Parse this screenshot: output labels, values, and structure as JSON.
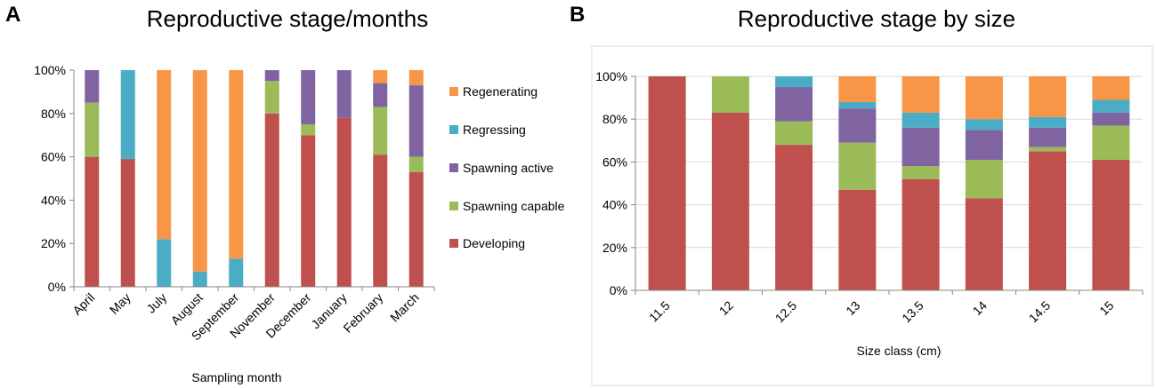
{
  "panels": {
    "a": "A",
    "b": "B"
  },
  "chart_data": [
    {
      "type": "bar",
      "stacked": true,
      "title": "Reproductive stage/months",
      "xlabel": "Sampling month",
      "ylabel": "",
      "ylim": [
        0,
        100
      ],
      "yticks": [
        "0%",
        "20%",
        "40%",
        "60%",
        "80%",
        "100%"
      ],
      "categories": [
        "April",
        "May",
        "July",
        "August",
        "September",
        "November",
        "December",
        "January",
        "February",
        "March"
      ],
      "legend_position": "right",
      "series": [
        {
          "name": "Developing",
          "color": "#c0504d",
          "values": [
            60,
            59,
            0,
            0,
            0,
            80,
            70,
            78,
            61,
            53
          ]
        },
        {
          "name": "Spawning capable",
          "color": "#9bbb59",
          "values": [
            25,
            0,
            0,
            0,
            0,
            15,
            5,
            0,
            22,
            7
          ]
        },
        {
          "name": "Spawning active",
          "color": "#8064a2",
          "values": [
            15,
            0,
            0,
            0,
            0,
            5,
            25,
            22,
            11,
            33
          ]
        },
        {
          "name": "Regressing",
          "color": "#4bacc6",
          "values": [
            0,
            41,
            22,
            7,
            13,
            0,
            0,
            0,
            0,
            0
          ]
        },
        {
          "name": "Regenerating",
          "color": "#f79646",
          "values": [
            0,
            0,
            78,
            93,
            87,
            0,
            0,
            0,
            6,
            7
          ]
        }
      ],
      "legend_order": [
        "Regenerating",
        "Regressing",
        "Spawning active",
        "Spawning capable",
        "Developing"
      ]
    },
    {
      "type": "bar",
      "stacked": true,
      "title": "Reproductive stage by size",
      "xlabel": "Size class (cm)",
      "ylabel": "",
      "ylim": [
        0,
        100
      ],
      "yticks": [
        "0%",
        "20%",
        "40%",
        "60%",
        "80%",
        "100%"
      ],
      "categories": [
        "11.5",
        "12",
        "12.5",
        "13",
        "13.5",
        "14",
        "14.5",
        "15"
      ],
      "series": [
        {
          "name": "Developing",
          "color": "#c0504d",
          "values": [
            100,
            83,
            68,
            47,
            52,
            43,
            65,
            61
          ]
        },
        {
          "name": "Spawning capable",
          "color": "#9bbb59",
          "values": [
            0,
            17,
            11,
            22,
            6,
            18,
            2,
            16
          ]
        },
        {
          "name": "Spawning active",
          "color": "#8064a2",
          "values": [
            0,
            0,
            16,
            16,
            18,
            14,
            9,
            6
          ]
        },
        {
          "name": "Regressing",
          "color": "#4bacc6",
          "values": [
            0,
            0,
            5,
            3,
            7,
            5,
            5,
            6
          ]
        },
        {
          "name": "Regenerating",
          "color": "#f79646",
          "values": [
            0,
            0,
            0,
            12,
            17,
            20,
            19,
            11
          ]
        }
      ]
    }
  ]
}
